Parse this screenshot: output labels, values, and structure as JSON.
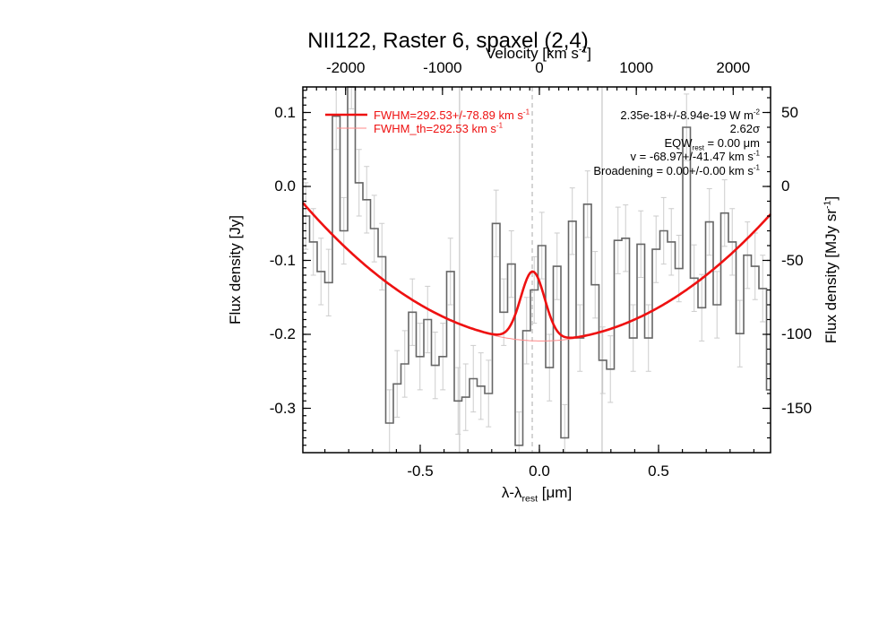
{
  "title": "NII122, Raster 6, spaxel (2,4)",
  "axes": {
    "top": {
      "label_main": "Velocity [km s",
      "label_sup": "-1",
      "label_close": "]",
      "tick_labels": [
        "-2000",
        "-1000",
        "0",
        "1000",
        "2000"
      ],
      "tick_values": [
        -2000,
        -1000,
        0,
        1000,
        2000
      ]
    },
    "bottom": {
      "label_pre": "λ-λ",
      "label_sub": "rest",
      "label_post": " [μm]",
      "tick_labels": [
        "-0.5",
        "0.0",
        "0.5"
      ],
      "tick_values": [
        -0.5,
        0.0,
        0.5
      ]
    },
    "left": {
      "label": "Flux density [Jy]",
      "tick_labels": [
        "0.1",
        "0.0",
        "-0.1",
        "-0.2",
        "-0.3"
      ],
      "tick_values": [
        0.1,
        0.0,
        -0.1,
        -0.2,
        -0.3
      ]
    },
    "right": {
      "label_main": "Flux density [MJy sr",
      "label_sup": "-1",
      "label_close": "]",
      "tick_labels": [
        "50",
        "0",
        "-50",
        "-100",
        "-150"
      ],
      "tick_values": [
        50,
        0,
        -50,
        -100,
        -150
      ]
    }
  },
  "legend": [
    {
      "text": "FWHM=292.53+/-78.89 km s",
      "sup": "-1",
      "style": "thick"
    },
    {
      "text": "FWHM_th=292.53 km s",
      "sup": "-1",
      "style": "thin"
    }
  ],
  "annotations": [
    {
      "text": "2.35e-18+/-8.94e-19 W m",
      "sup": "-2"
    },
    {
      "text": "2.62σ"
    },
    {
      "pre": "EQW",
      "sub": "rest",
      "post": " = 0.00 μm"
    },
    {
      "text": "v = -68.97+/-41.47 km s",
      "sup": "-1"
    },
    {
      "text": "Broadening = 0.00+/-0.00 km s",
      "sup": "-1"
    }
  ],
  "colors": {
    "fit": "#ee1111",
    "fit_thin": "#ff8888",
    "histogram": "#666666",
    "error_bars": "#cccccc",
    "gridline_solid": "#bbbbbb",
    "gridline_dashed": "#aaaaaa",
    "frame": "#000000"
  },
  "chart_data": {
    "type": "line",
    "description": "PACS spectrum: stepped histogram data with error bars, polynomial continuum + Gaussian line fit",
    "title": "NII122, Raster 6, spaxel (2,4)",
    "xlabel": "λ-λ_rest [μm]",
    "ylabel_left": "Flux density [Jy]",
    "ylabel_right": "Flux density [MJy sr-1]",
    "top_axis": "Velocity [km s-1]",
    "xlim_um": [
      -0.995,
      0.97
    ],
    "ylim_jy": [
      -0.36,
      0.1345
    ],
    "right_axis_jy_to_mjysr": 500,
    "um_per_kms": 0.0004066,
    "histogram": {
      "lambda_start_um": -0.9803,
      "lambda_step_um": 0.031954,
      "err_jy": 0.045,
      "flux_jy": [
        -0.04,
        -0.075,
        -0.115,
        -0.13,
        0.095,
        -0.06,
        0.15,
        0.005,
        -0.018,
        -0.057,
        -0.095,
        -0.32,
        -0.267,
        -0.24,
        -0.17,
        -0.23,
        -0.18,
        -0.242,
        -0.23,
        -0.115,
        -0.29,
        -0.285,
        -0.26,
        -0.27,
        -0.28,
        -0.05,
        -0.17,
        -0.105,
        -0.35,
        -0.195,
        -0.14,
        -0.08,
        -0.245,
        -0.108,
        -0.34,
        -0.047,
        -0.205,
        -0.024,
        -0.133,
        -0.235,
        -0.247,
        -0.073,
        -0.07,
        -0.205,
        -0.078,
        -0.205,
        -0.085,
        -0.06,
        -0.075,
        -0.111,
        0.08,
        -0.124,
        -0.164,
        -0.048,
        -0.16,
        -0.036,
        -0.075,
        -0.199,
        -0.093,
        -0.108,
        -0.138,
        -0.275
      ]
    },
    "fit": {
      "continuum": {
        "min_jy": -0.208,
        "vertex_um": 0.01,
        "curvature_jy_per_um2": 0.185
      },
      "gaussian": {
        "center_um": -0.028,
        "sigma_um": 0.0505,
        "amplitude_jy": 0.0927,
        "fwhm_kms": 292.53,
        "fwhm_err_kms": 78.89
      },
      "thin_fit_offset_jy": -0.001,
      "flux_w_m2": "2.35e-18+/-8.94e-19",
      "significance_sigma": 2.62,
      "eqw_rest_um": 0.0,
      "velocity_kms": "-68.97+/-41.47",
      "broadening_kms": "0.00+/-0.00"
    },
    "markers": {
      "solid_vlines_um": [
        -0.335,
        0.263
      ],
      "dashed_vline_um": -0.03
    }
  }
}
